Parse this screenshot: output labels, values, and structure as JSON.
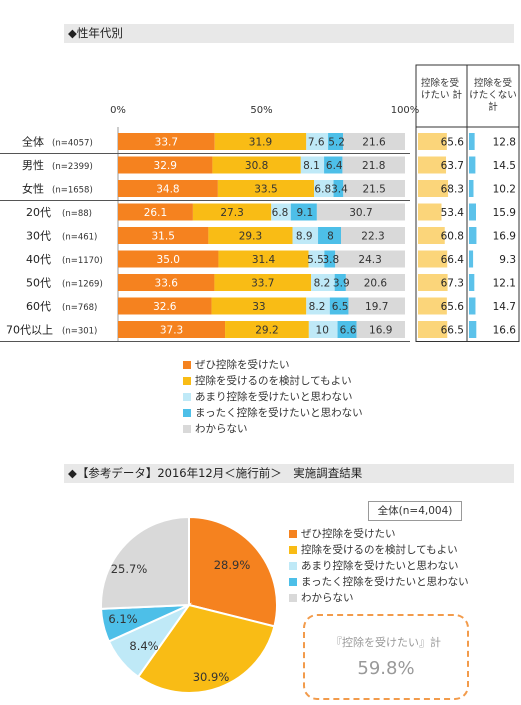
{
  "section1": {
    "title": "◆性年代別"
  },
  "section2": {
    "title": "◆【参考データ】2016年12月＜施行前＞　実施調査結果"
  },
  "colors": {
    "want": "#f5821f",
    "consider": "#f9bc15",
    "not_much": "#bfe9f7",
    "not_at_all": "#4dbfe8",
    "dont_know": "#d9d9d9",
    "sum_want_bar": "#fbd57a",
    "sum_not_bar": "#5cc2ea",
    "dashed_box": "#f29b4b"
  },
  "chart_data": [
    {
      "type": "bar",
      "orientation": "horizontal-stacked",
      "xlim": [
        0,
        100
      ],
      "x_ticks": [
        "0%",
        "50%",
        "100%"
      ],
      "categories": [
        "全体",
        "男性",
        "女性",
        "20代",
        "30代",
        "40代",
        "50代",
        "60代",
        "70代以上"
      ],
      "category_n": [
        "(n=4057)",
        "(n=2399)",
        "(n=1658)",
        "(n=88)",
        "(n=461)",
        "(n=1170)",
        "(n=1269)",
        "(n=768)",
        "(n=301)"
      ],
      "series": [
        {
          "name": "ぜひ控除を受けたい",
          "values": [
            33.7,
            32.9,
            34.8,
            26.1,
            31.5,
            35.0,
            33.6,
            32.6,
            37.3
          ],
          "labels": [
            "33.7",
            "32.9",
            "34.8",
            "26.1",
            "31.5",
            "35.0",
            "33.6",
            "32.6",
            "37.3"
          ]
        },
        {
          "name": "控除を受けるのを検討してもよい",
          "values": [
            31.9,
            30.8,
            33.5,
            27.3,
            29.3,
            31.4,
            33.7,
            33,
            29.2
          ],
          "labels": [
            "31.9",
            "30.8",
            "33.5",
            "27.3",
            "29.3",
            "31.4",
            "33.7",
            "33",
            "29.2"
          ]
        },
        {
          "name": "あまり控除を受けたいと思わない",
          "values": [
            7.6,
            8.1,
            6.8,
            6.8,
            8.9,
            5.5,
            8.2,
            8.2,
            10
          ],
          "labels": [
            "7.6",
            "8.1",
            "6.8",
            "6.8",
            "8.9",
            "5.5",
            "8.2",
            "8.2",
            "10"
          ]
        },
        {
          "name": "まったく控除を受けたいと思わない",
          "values": [
            5.2,
            6.4,
            3.4,
            9.1,
            8,
            3.8,
            3.9,
            6.5,
            6.6
          ],
          "labels": [
            "5.2",
            "6.4",
            "3.4",
            "9.1",
            "8",
            "3.8",
            "3.9",
            "6.5",
            "6.6"
          ]
        },
        {
          "name": "わからない",
          "values": [
            21.6,
            21.8,
            21.5,
            30.7,
            22.3,
            24.3,
            20.6,
            19.7,
            16.9
          ],
          "labels": [
            "21.6",
            "21.8",
            "21.5",
            "30.7",
            "22.3",
            "24.3",
            "20.6",
            "19.7",
            "16.9"
          ]
        }
      ],
      "summary_columns": [
        {
          "header": [
            "控除を受",
            "けたい  計"
          ],
          "values": [
            65.6,
            63.7,
            68.3,
            53.4,
            60.8,
            66.4,
            67.3,
            65.6,
            66.5
          ]
        },
        {
          "header": [
            "控除を受",
            "けたくない",
            "計"
          ],
          "values": [
            12.8,
            14.5,
            10.2,
            15.9,
            16.9,
            9.3,
            12.1,
            14.7,
            16.6
          ]
        }
      ],
      "legend": [
        "ぜひ控除を受けたい",
        "控除を受けるのを検討してもよい",
        "あまり控除を受けたいと思わない",
        "まったく控除を受けたいと思わない",
        "わからない"
      ]
    },
    {
      "type": "pie",
      "title": "全体(n=4,004)",
      "slices": [
        {
          "name": "ぜひ控除を受けたい",
          "value": 28.9,
          "label": "28.9%"
        },
        {
          "name": "控除を受けるのを検討してもよい",
          "value": 30.9,
          "label": "30.9%"
        },
        {
          "name": "あまり控除を受けたいと思わない",
          "value": 8.4,
          "label": "8.4%"
        },
        {
          "name": "まったく控除を受けたいと思わない",
          "value": 6.1,
          "label": "6.1%"
        },
        {
          "name": "わからない",
          "value": 25.7,
          "label": "25.7%"
        }
      ],
      "legend": [
        "ぜひ控除を受けたい",
        "控除を受けるのを検討してもよい",
        "あまり控除を受けたいと思わない",
        "まったく控除を受けたいと思わない",
        "わからない"
      ],
      "callout": {
        "label": "『控除を受けたい』計",
        "value": "59.8%"
      }
    }
  ]
}
